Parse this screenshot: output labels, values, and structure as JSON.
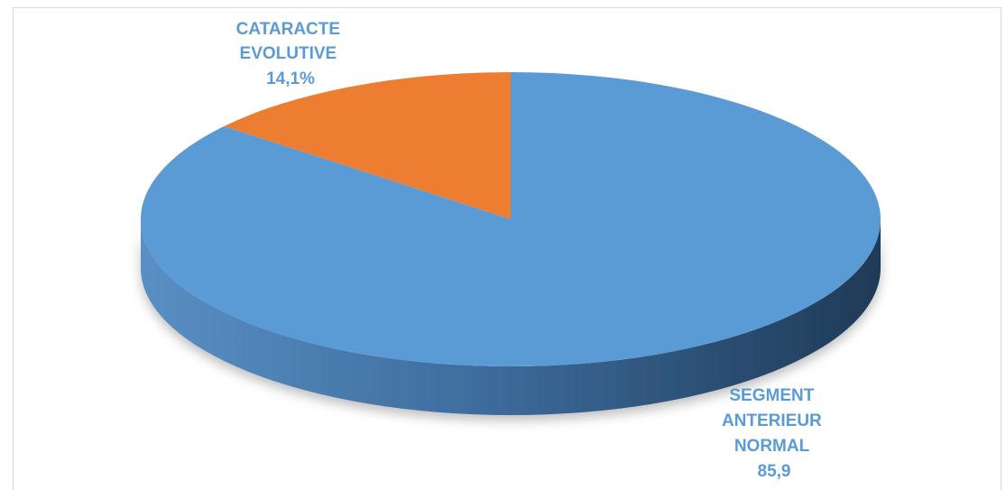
{
  "chart_data": {
    "type": "pie",
    "style": "3d-tilted",
    "slices": [
      {
        "label": "CATARACTE EVOLUTIVE",
        "label_lines": [
          "CATARACTE",
          "EVOLUTIVE"
        ],
        "value": 14.1,
        "value_text": "14,1%",
        "color": "#ed7d31"
      },
      {
        "label": "SEGMENT ANTERIEUR NORMAL",
        "label_lines": [
          "SEGMENT",
          "ANTERIEUR",
          "NORMAL"
        ],
        "value": 85.9,
        "value_text": "85,9",
        "color": "#5b9bd5"
      }
    ],
    "label_color": "#5b9bd5",
    "legend": "none"
  }
}
